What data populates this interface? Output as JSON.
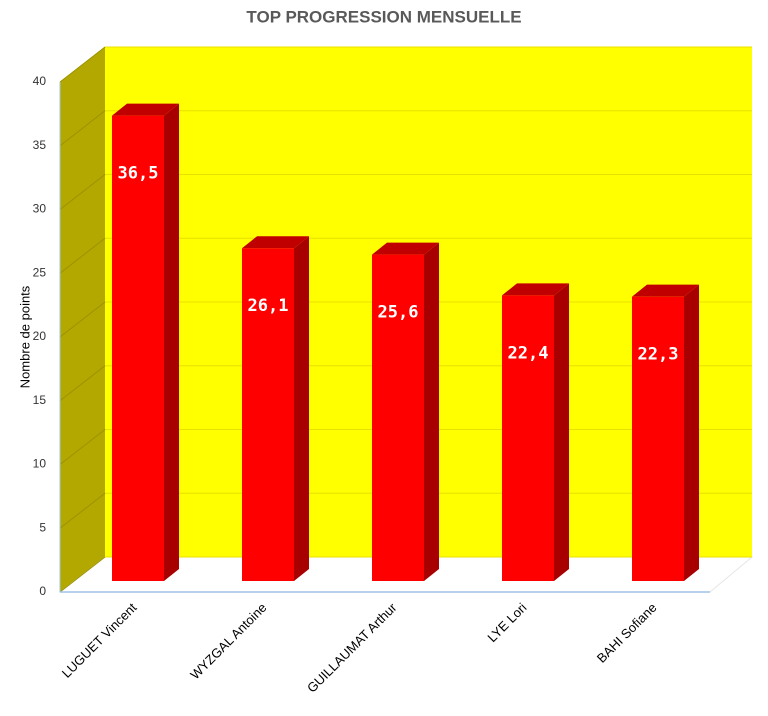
{
  "chart_data": {
    "type": "bar",
    "title": "TOP PROGRESSION MENSUELLE",
    "y_label": "Nombre de points",
    "categories": [
      "LUGUET Vincent",
      "WYZGAL Antoine",
      "GUILLAUMAT Arthur",
      "LYE Lori",
      "BAHI Sofiane"
    ],
    "values": [
      36.5,
      26.1,
      25.6,
      22.4,
      22.3
    ],
    "value_labels": [
      "36,5",
      "26,1",
      "25,6",
      "22,4",
      "22,3"
    ],
    "color": "#ff0000",
    "ylim": [
      0,
      40
    ],
    "yticks": [
      0,
      5,
      10,
      15,
      20,
      25,
      30,
      35,
      40
    ],
    "grid": true
  }
}
